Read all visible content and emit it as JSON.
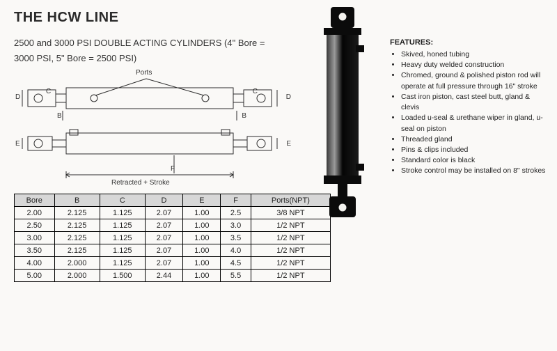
{
  "title": "THE HCW LINE",
  "subtitle_line1": "2500 and 3000 PSI DOUBLE ACTING CYLINDERS (4\" Bore =",
  "subtitle_line2": "3000 PSI, 5\" Bore = 2500 PSI)",
  "diagram": {
    "ports_label": "Ports",
    "retracted_label": "Retracted + Stroke",
    "labels": {
      "B": "B",
      "C": "C",
      "D": "D",
      "E": "E",
      "F": "F"
    },
    "line_color": "#2c2c2c",
    "line_width": 1
  },
  "photo": {
    "body_color": "#0b0b0b",
    "highlight_color": "#747474"
  },
  "features": {
    "heading": "FEATURES:",
    "items": [
      "Skived, honed tubing",
      "Heavy duty welded construction",
      "Chromed, ground & polished piston rod will operate at full pressure through 16\" stroke",
      "Cast iron piston, cast steel butt, gland & clevis",
      "Loaded u-seal & urethane wiper in gland, u-seal on piston",
      "Threaded gland",
      "Pins & clips included",
      "Standard color is black",
      "Stroke control may be installed on 8\" strokes"
    ]
  },
  "table": {
    "columns": [
      "Bore",
      "B",
      "C",
      "D",
      "E",
      "F",
      "Ports(NPT)"
    ],
    "rows": [
      [
        "2.00",
        "2.125",
        "1.125",
        "2.07",
        "1.00",
        "2.5",
        "3/8 NPT"
      ],
      [
        "2.50",
        "2.125",
        "1.125",
        "2.07",
        "1.00",
        "3.0",
        "1/2 NPT"
      ],
      [
        "3.00",
        "2.125",
        "1.125",
        "2.07",
        "1.00",
        "3.5",
        "1/2 NPT"
      ],
      [
        "3.50",
        "2.125",
        "1.125",
        "2.07",
        "1.00",
        "4.0",
        "1/2 NPT"
      ],
      [
        "4.00",
        "2.000",
        "1.125",
        "2.07",
        "1.00",
        "4.5",
        "1/2 NPT"
      ],
      [
        "5.00",
        "2.000",
        "1.500",
        "2.44",
        "1.00",
        "5.5",
        "1/2 NPT"
      ]
    ],
    "header_bg": "#d7d7d7",
    "border_color": "#000000",
    "font_size": 11
  }
}
